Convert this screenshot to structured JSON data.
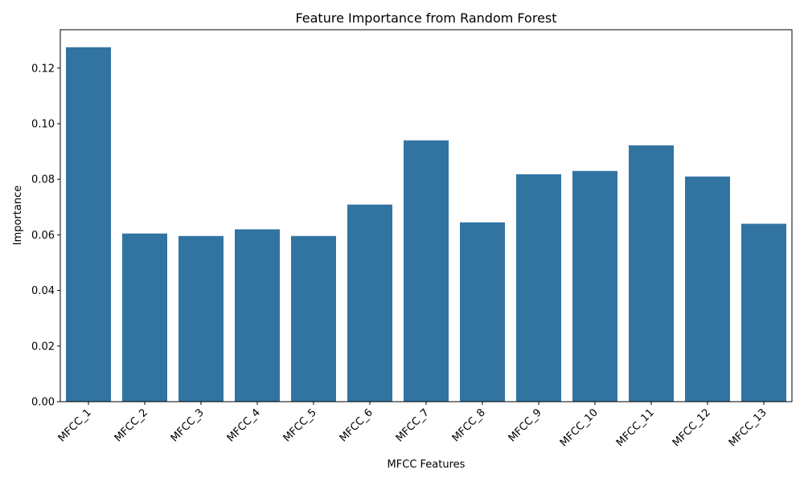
{
  "chart_data": {
    "type": "bar",
    "title": "Feature Importance from Random Forest",
    "xlabel": "MFCC Features",
    "ylabel": "Importance",
    "categories": [
      "MFCC_1",
      "MFCC_2",
      "MFCC_3",
      "MFCC_4",
      "MFCC_5",
      "MFCC_6",
      "MFCC_7",
      "MFCC_8",
      "MFCC_9",
      "MFCC_10",
      "MFCC_11",
      "MFCC_12",
      "MFCC_13"
    ],
    "values": [
      0.1275,
      0.0605,
      0.0596,
      0.062,
      0.0596,
      0.0709,
      0.094,
      0.0645,
      0.0818,
      0.083,
      0.0922,
      0.081,
      0.064
    ],
    "ylim": [
      0,
      0.1338
    ],
    "yticks": [
      "0.00",
      "0.02",
      "0.04",
      "0.06",
      "0.08",
      "0.10",
      "0.12"
    ],
    "bar_color": "#3274a1",
    "grid": false,
    "legend": "none"
  }
}
